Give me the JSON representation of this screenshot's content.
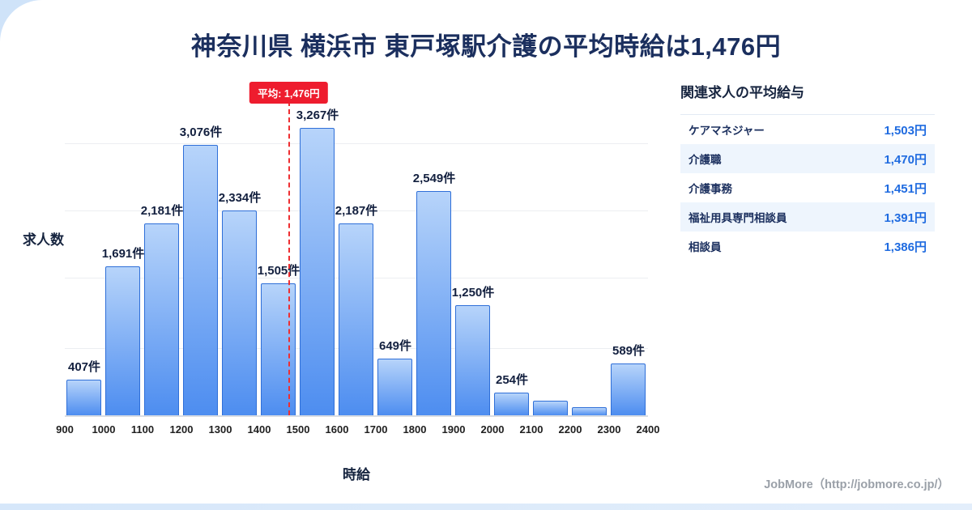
{
  "title": "神奈川県 横浜市 東戸塚駅介護の平均時給は1,476円",
  "chart_data": {
    "type": "bar",
    "title": "神奈川県 横浜市 東戸塚駅介護の平均時給は1,476円",
    "xlabel": "時給",
    "ylabel": "求人数",
    "bin_edges": [
      900,
      1000,
      1100,
      1200,
      1300,
      1400,
      1500,
      1600,
      1700,
      1800,
      1900,
      2000,
      2100,
      2200,
      2300,
      2400
    ],
    "values": [
      407,
      1691,
      2181,
      3076,
      2334,
      1505,
      3267,
      2187,
      649,
      2549,
      1250,
      254,
      170,
      90,
      589
    ],
    "bar_labels": [
      "407件",
      "1,691件",
      "2,181件",
      "3,076件",
      "2,334件",
      "1,505件",
      "3,267件",
      "2,187件",
      "649件",
      "2,549件",
      "1,250件",
      "254件",
      "",
      "",
      "589件"
    ],
    "ylim": [
      0,
      3500
    ],
    "grid": true,
    "legend": "none",
    "average": {
      "value": 1476,
      "label": "平均: 1,476円"
    }
  },
  "panel": {
    "title": "関連求人の平均給与",
    "rows": [
      {
        "label": "ケアマネジャー",
        "value": "1,503円"
      },
      {
        "label": "介護職",
        "value": "1,470円"
      },
      {
        "label": "介護事務",
        "value": "1,451円"
      },
      {
        "label": "福祉用具専門相談員",
        "value": "1,391円"
      },
      {
        "label": "相談員",
        "value": "1,386円"
      }
    ]
  },
  "footer": {
    "credit": "JobMore（http://jobmore.co.jp/）"
  },
  "colors": {
    "title_navy": "#1b2f5e",
    "bar_top": "#b7d4fa",
    "bar_bottom": "#4d8df0",
    "bar_border": "#2f6fd8",
    "average_red": "#ee1c2e",
    "value_blue": "#1f6be0",
    "row_alt_bg": "#eef5fd",
    "footer_gray": "#9aa0a8"
  }
}
